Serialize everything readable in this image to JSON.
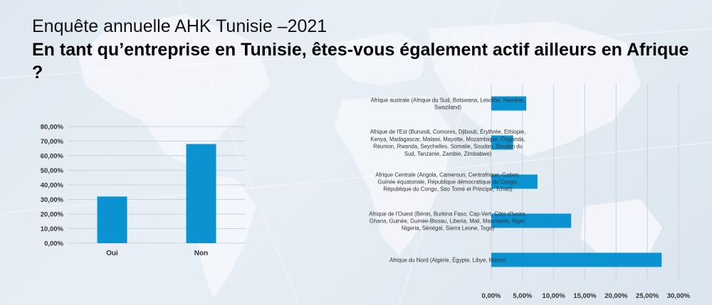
{
  "header": {
    "subtitle": "Enquête annuelle AHK Tunisie –2021",
    "question": "En tant qu’entreprise en Tunisie, êtes-vous également actif ailleurs en Afrique ?"
  },
  "colors": {
    "bar": "#0b93d1",
    "grid": "#c9d3dc",
    "text": "#333333"
  },
  "chart_data": [
    {
      "type": "bar",
      "orientation": "vertical",
      "categories": [
        "Oui",
        "Non"
      ],
      "values": [
        32.0,
        68.0
      ],
      "ylim": [
        0,
        80
      ],
      "yticks": [
        "0,00%",
        "10,00%",
        "20,00%",
        "30,00%",
        "40,00%",
        "50,00%",
        "60,00%",
        "70,00%",
        "80,00%"
      ],
      "grid": true
    },
    {
      "type": "bar",
      "orientation": "horizontal",
      "categories": [
        "Afrique australe (Afrique du Sud, Botswana, Lesotho, Namibie, Swaziland)",
        "Afrique de l'Est (Burundi, Comores, Djibouti, Érythrée, Ethiopie, Kenya, Madagascar, Malawi, Mayotte, Mozambique, Ouganda, Réunion, Rwanda, Seychelles, Somalie, Soudan, Soudan du Sud, Tanzanie, Zambie, Zimbabwe)",
        "Afrique Centrale (Angola, Cameroun, Centrafrique, Gabon, Guinée équatoriale, République démocratique du Congo, République du Congo, Sao Tomé et Principe, Tchad)",
        "Afrique de l'Ouest (Bénin, Burkina Faso, Cap-Vert, Côte d'Ivoire, Ghana, Guinée, Guinée-Bissau, Liberia, Mali, Mauritanie, Niger, Nigeria, Sénégal, Sierra Leone, Togo)",
        "Afrique du Nord (Algérie, Égypte, Libye, Maroc)"
      ],
      "label_lines": [
        [
          "Afrique australe (Afrique du Sud, Botswana, Lesotho, Namibie,",
          "Swaziland)"
        ],
        [
          "Afrique de l'Est (Burundi, Comores, Djibouti, Érythrée, Ethiopie,",
          "Kenya, Madagascar, Malawi, Mayotte, Mozambique, Ouganda,",
          "Réunion, Rwanda, Seychelles, Somalie, Soudan, Soudan du",
          "Sud, Tanzanie, Zambie, Zimbabwe)"
        ],
        [
          "Afrique Centrale (Angola, Cameroun, Centrafrique, Gabon,",
          "Guinée équatoriale, République démocratique du Congo,",
          "République du Congo, Sao Tomé et Principe, Tchad)"
        ],
        [
          "Afrique de l'Ouest (Bénin, Burkina Faso, Cap-Vert, Côte d'Ivoire,",
          "Ghana, Guinée, Guinée-Bissau, Liberia, Mali, Mauritanie, Niger,",
          "Nigeria, Sénégal, Sierra Leone, Togo)"
        ],
        [
          "Afrique du Nord (Algérie, Égypte, Libye, Maroc)"
        ]
      ],
      "values": [
        5.6,
        3.5,
        7.4,
        12.8,
        27.3
      ],
      "xlim": [
        0,
        30
      ],
      "xticks": [
        "0,00%",
        "5,00%",
        "10,00%",
        "15,00%",
        "20,00%",
        "25,00%",
        "30,00%"
      ],
      "grid": true
    }
  ]
}
